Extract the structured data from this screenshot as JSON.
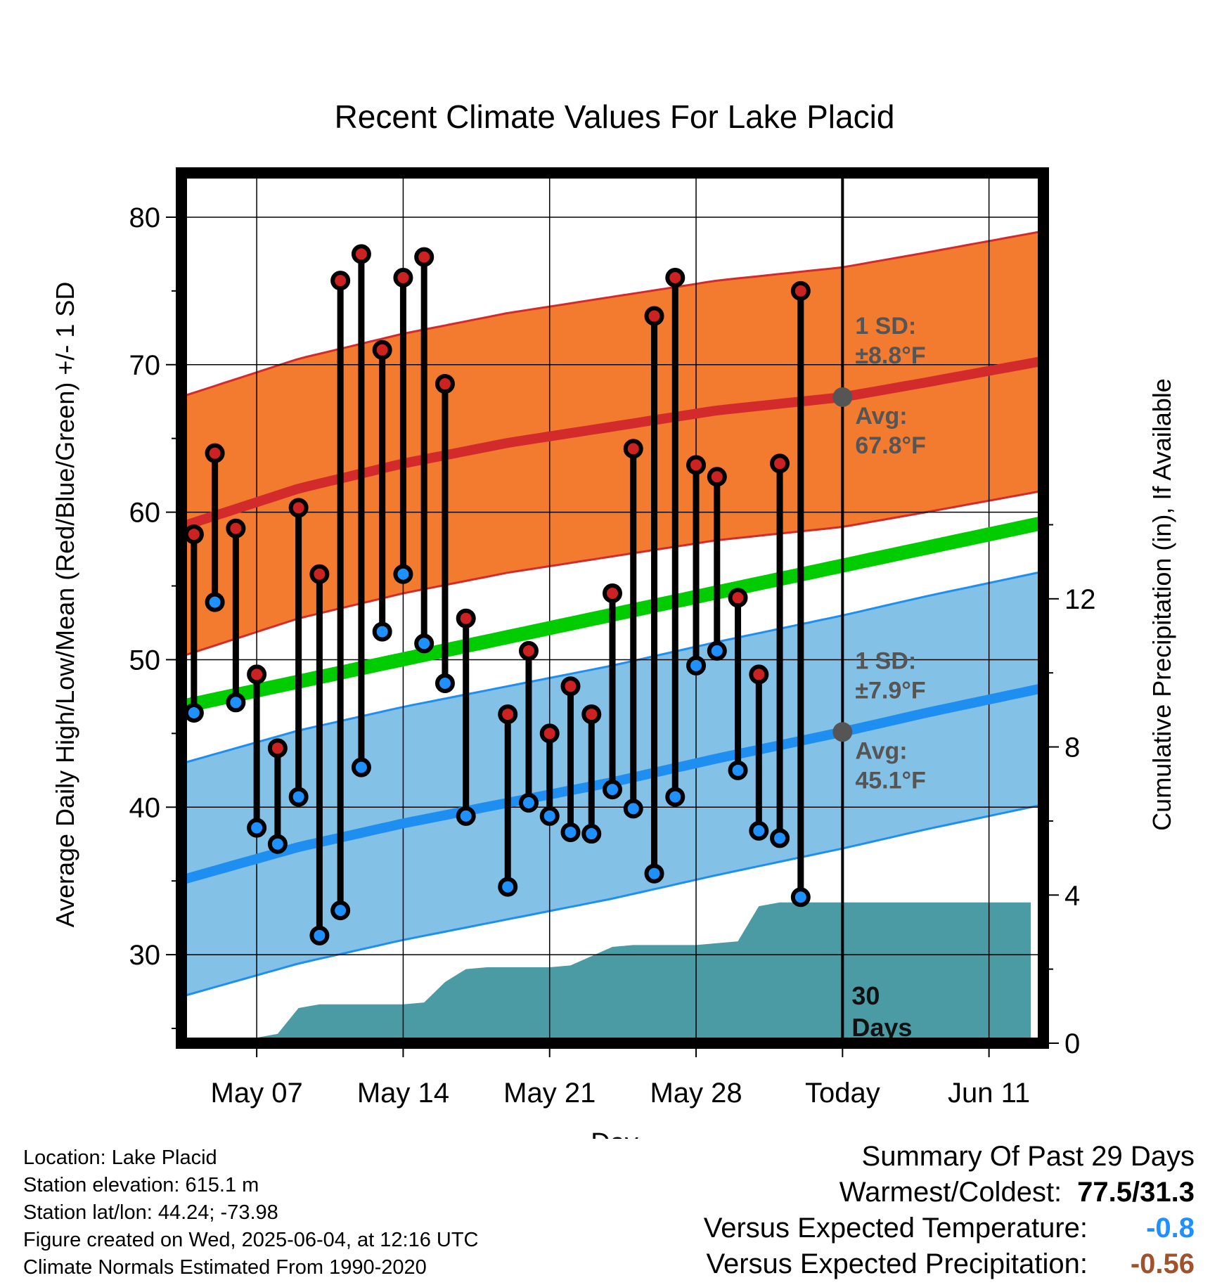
{
  "colors": {
    "high_band": "#f27b30",
    "high_band_edge": "#d32b2b",
    "normal_high": "#d32b2b",
    "normal_mean": "#00cc00",
    "low_band": "#84c1e6",
    "low_band_edge": "#1e8ff0",
    "normal_low": "#1e8ff0",
    "precip_fill": "#4a9ba3",
    "high_marker": "#cc2222",
    "low_marker": "#1e90ff",
    "today_marker": "#555555",
    "temp_anomaly": "#1e90ff",
    "precip_anomaly": "#a0522d"
  },
  "chart_data": {
    "type": "line",
    "title": "Recent Climate Values For Lake Placid",
    "xlabel": "Day",
    "ylabel": "Average Daily High/Low/Mean (Red/Blue/Green) +/- 1 SD",
    "y2label": "Cumulative Precipitation (in), If Available",
    "ylim": [
      24,
      83
    ],
    "y2lim": [
      0,
      23.5
    ],
    "yticks": [
      30,
      40,
      50,
      60,
      70,
      80
    ],
    "y2ticks": [
      0,
      4,
      8,
      12
    ],
    "x_start": "May 04",
    "x_range_days": [
      -0.6,
      40.6
    ],
    "xticks": [
      {
        "day": 3,
        "label": "May 07"
      },
      {
        "day": 10,
        "label": "May 14"
      },
      {
        "day": 17,
        "label": "May 21"
      },
      {
        "day": 24,
        "label": "May 28"
      },
      {
        "day": 31,
        "label": "Today"
      },
      {
        "day": 38,
        "label": "Jun 11"
      }
    ],
    "today_day": 31,
    "window_label": "30 Days",
    "grid": true,
    "observed": {
      "high": [
        58.5,
        64.0,
        58.9,
        49.0,
        44.0,
        60.3,
        55.8,
        75.7,
        77.5,
        71.0,
        75.9,
        77.3,
        68.7,
        52.8,
        null,
        46.3,
        50.6,
        45.0,
        48.2,
        46.3,
        54.5,
        64.3,
        73.3,
        75.9,
        63.2,
        62.4,
        54.2,
        49.0,
        63.3,
        75.0
      ],
      "low": [
        46.4,
        53.9,
        47.1,
        38.6,
        37.5,
        40.7,
        31.3,
        33.0,
        42.7,
        51.9,
        55.8,
        51.1,
        48.4,
        39.4,
        null,
        34.6,
        40.3,
        39.4,
        38.3,
        38.2,
        41.2,
        39.9,
        35.5,
        40.7,
        49.6,
        50.6,
        42.5,
        38.4,
        37.9,
        33.9
      ]
    },
    "normal_high": {
      "days": [
        0,
        5,
        10,
        15,
        20,
        25,
        31,
        35,
        40
      ],
      "values": [
        59.3,
        61.6,
        63.3,
        64.7,
        65.8,
        66.9,
        67.8,
        68.8,
        70.1
      ]
    },
    "normal_low": {
      "days": [
        0,
        5,
        10,
        15,
        20,
        25,
        31,
        35,
        40
      ],
      "values": [
        35.3,
        37.3,
        38.9,
        40.3,
        41.7,
        43.3,
        45.1,
        46.4,
        47.9
      ]
    },
    "normal_mean": {
      "days": [
        0,
        40
      ],
      "values": [
        47.0,
        59.1
      ]
    },
    "high_sd": 8.8,
    "low_sd": 7.9,
    "precip_cumulative": {
      "days": [
        0,
        1,
        2,
        3,
        4,
        5,
        6,
        7,
        8,
        9,
        10,
        11,
        12,
        13,
        14,
        15,
        16,
        17,
        18,
        19,
        20,
        21,
        22,
        23,
        24,
        25,
        26,
        27,
        28,
        29,
        30,
        31,
        40
      ],
      "values": [
        0,
        0,
        0.05,
        0.15,
        0.25,
        0.95,
        1.05,
        1.05,
        1.05,
        1.05,
        1.05,
        1.1,
        1.65,
        2.0,
        2.05,
        2.05,
        2.05,
        2.05,
        2.1,
        2.35,
        2.6,
        2.65,
        2.65,
        2.65,
        2.65,
        2.7,
        2.75,
        3.7,
        3.8,
        3.8,
        3.8,
        3.8,
        3.8
      ]
    },
    "annotations": {
      "high_sd_line1": "1 SD:",
      "high_sd_line2": "±8.8°F",
      "high_avg_line1": "Avg:",
      "high_avg_line2": "67.8°F",
      "low_sd_line1": "1 SD:",
      "low_sd_line2": "±7.9°F",
      "low_avg_line1": "Avg:",
      "low_avg_line2": "45.1°F"
    }
  },
  "info": {
    "location": "Location: Lake Placid",
    "elevation": "Station elevation: 615.1 m",
    "latlon": "Station lat/lon: 44.24; -73.98",
    "created": "Figure created on Wed, 2025-06-04, at 12:16 UTC",
    "normals": "Climate Normals Estimated From 1990-2020"
  },
  "summary": {
    "heading": "Summary Of Past 29 Days",
    "warm_cold_label": "Warmest/Coldest:",
    "warm_cold_value": "77.5/31.3",
    "temp_label": "Versus Expected Temperature:",
    "temp_value": "-0.8",
    "precip_label": "Versus Expected Precipitation:",
    "precip_value": "-0.56"
  }
}
